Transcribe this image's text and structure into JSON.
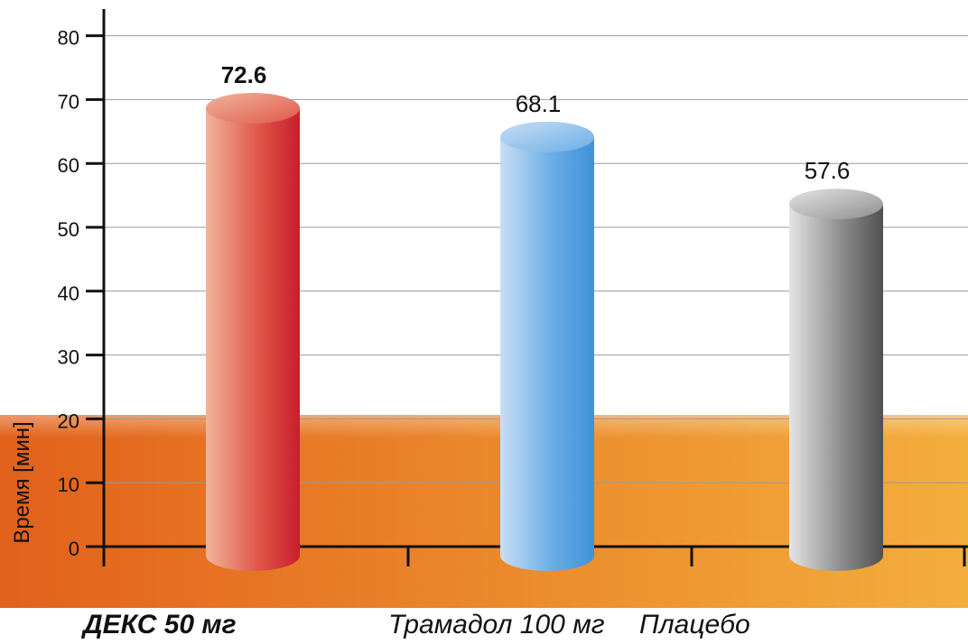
{
  "chart_data": {
    "type": "bar",
    "title": "",
    "xlabel": "",
    "ylabel": "Время [мин]",
    "ylim": [
      0,
      80
    ],
    "yticks": [
      0,
      10,
      20,
      30,
      40,
      50,
      60,
      70,
      80
    ],
    "grid": true,
    "style": "3d-cylinder",
    "categories": [
      "ДЕКС 50 мг",
      "Трамадол 100 мг",
      "Плацебо"
    ],
    "values": [
      72.6,
      68.1,
      57.6
    ],
    "value_labels": [
      "72.6",
      "68.1",
      "57.6"
    ],
    "highlight_index": 0,
    "bar_colors": [
      {
        "light": "#f1b49a",
        "mid": "#e0584a",
        "dark": "#c81e2d"
      },
      {
        "light": "#c9def5",
        "mid": "#6aaee6",
        "dark": "#3d92d9"
      },
      {
        "light": "#e4e4e4",
        "mid": "#8e8e8e",
        "dark": "#505050"
      }
    ],
    "band_colors": {
      "left": "#e2611b",
      "right": "#f3ae3c"
    }
  }
}
